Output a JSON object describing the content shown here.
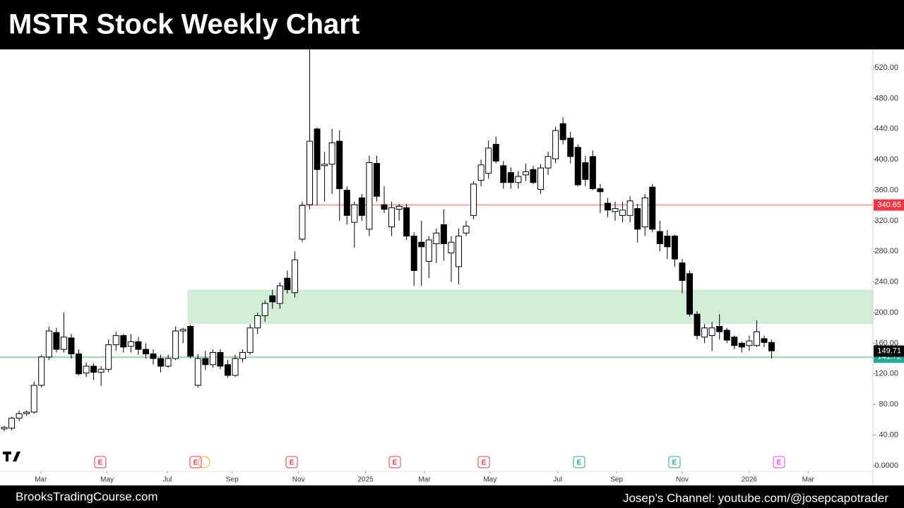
{
  "chart_data": {
    "type": "candlestick",
    "title": "MSTR Stock Weekly Chart",
    "footer_left": "BrooksTradingCourse.com",
    "footer_right": "Josep’s Channel: youtube.com/@josepcapotrader",
    "up_color": "#ffffff",
    "down_color": "#000000",
    "border_color": "#000000",
    "x": [
      0,
      1,
      2,
      3,
      4,
      5,
      6,
      7,
      8,
      9,
      10,
      11,
      12,
      13,
      14,
      15,
      16,
      17,
      18,
      19,
      20,
      21,
      22,
      23,
      24,
      25,
      26,
      27,
      28,
      29,
      30,
      31,
      32,
      33,
      34,
      35,
      36,
      37,
      38,
      39,
      40,
      41,
      42,
      43,
      44,
      45,
      46,
      47,
      48,
      49,
      50,
      51,
      52,
      53,
      54,
      55,
      56,
      57,
      58,
      59,
      60,
      61,
      62,
      63,
      64,
      65,
      66,
      67,
      68,
      69,
      70,
      71,
      72,
      73,
      74,
      75,
      76,
      77,
      78,
      79,
      80,
      81,
      82,
      83,
      84,
      85,
      86,
      87,
      88,
      89,
      90,
      91,
      92,
      93,
      94,
      95,
      96,
      97,
      98,
      99,
      100,
      101,
      102,
      103
    ],
    "open": [
      48,
      49,
      62,
      68,
      70,
      105,
      142,
      174,
      152,
      167,
      146,
      121,
      130,
      122,
      126,
      158,
      170,
      156,
      162,
      152,
      146,
      140,
      130,
      140,
      176,
      182,
      105,
      140,
      132,
      148,
      132,
      118,
      140,
      148,
      180,
      196,
      222,
      212,
      245,
      226,
      296,
      341,
      440,
      392,
      394,
      424,
      360,
      318,
      350,
      309,
      395,
      341,
      312,
      335,
      337,
      300,
      292,
      267,
      290,
      315,
      278,
      260,
      304,
      327,
      373,
      382,
      420,
      392,
      383,
      370,
      380,
      387,
      361,
      389,
      401,
      447,
      428,
      416,
      396,
      404,
      362,
      343,
      332,
      327,
      327,
      336,
      312,
      364,
      306,
      300,
      300,
      265,
      251,
      198,
      168,
      170,
      182,
      177,
      168,
      160,
      157,
      157,
      166,
      161
    ],
    "high": [
      52,
      64,
      72,
      72,
      110,
      145,
      182,
      180,
      200,
      172,
      152,
      135,
      134,
      130,
      165,
      175,
      172,
      172,
      168,
      160,
      152,
      145,
      145,
      182,
      180,
      184,
      146,
      150,
      152,
      152,
      138,
      145,
      152,
      185,
      200,
      216,
      230,
      240,
      255,
      280,
      345,
      544,
      442,
      410,
      440,
      438,
      365,
      345,
      355,
      405,
      405,
      365,
      345,
      342,
      342,
      305,
      320,
      300,
      310,
      335,
      300,
      310,
      320,
      372,
      400,
      425,
      430,
      398,
      390,
      385,
      395,
      392,
      394,
      410,
      443,
      455,
      436,
      420,
      405,
      412,
      368,
      350,
      345,
      345,
      352,
      342,
      355,
      368,
      320,
      308,
      302,
      270,
      255,
      202,
      185,
      188,
      198,
      180,
      170,
      162,
      170,
      190,
      170,
      165
    ],
    "low": [
      45,
      46,
      58,
      65,
      68,
      102,
      138,
      148,
      148,
      140,
      118,
      116,
      112,
      104,
      122,
      150,
      148,
      148,
      145,
      140,
      132,
      122,
      128,
      138,
      160,
      140,
      102,
      125,
      128,
      126,
      115,
      116,
      135,
      145,
      172,
      188,
      205,
      205,
      225,
      220,
      292,
      335,
      340,
      345,
      355,
      320,
      315,
      285,
      320,
      300,
      345,
      330,
      300,
      320,
      295,
      235,
      235,
      245,
      265,
      268,
      240,
      237,
      300,
      322,
      365,
      375,
      395,
      362,
      362,
      362,
      372,
      368,
      355,
      380,
      395,
      420,
      395,
      365,
      365,
      360,
      330,
      325,
      320,
      318,
      318,
      292,
      300,
      305,
      280,
      270,
      260,
      225,
      195,
      165,
      160,
      150,
      165,
      160,
      152,
      148,
      150,
      155,
      155,
      140
    ],
    "close": [
      50,
      62,
      68,
      70,
      105,
      142,
      176,
      152,
      168,
      146,
      120,
      130,
      122,
      126,
      158,
      170,
      155,
      162,
      152,
      146,
      140,
      130,
      140,
      176,
      178,
      143,
      140,
      132,
      148,
      130,
      118,
      140,
      148,
      180,
      196,
      212,
      214,
      235,
      230,
      269,
      340,
      424,
      387,
      394,
      422,
      362,
      327,
      341,
      327,
      396,
      352,
      335,
      337,
      339,
      300,
      255,
      286,
      295,
      304,
      290,
      292,
      300,
      313,
      368,
      393,
      415,
      398,
      370,
      370,
      378,
      384,
      370,
      389,
      404,
      438,
      426,
      404,
      367,
      374,
      362,
      358,
      334,
      336,
      334,
      346,
      309,
      350,
      309,
      290,
      286,
      270,
      242,
      198,
      170,
      180,
      180,
      175,
      164,
      157,
      155,
      163,
      175,
      161,
      150
    ],
    "xlim": [
      -0.57,
      116.6
    ],
    "xticks": [
      {
        "value": 4.9,
        "label": "Mar"
      },
      {
        "value": 13.8,
        "label": "May"
      },
      {
        "value": 21.9,
        "label": "Jul"
      },
      {
        "value": 30.6,
        "label": "Sep"
      },
      {
        "value": 39.5,
        "label": "Nov"
      },
      {
        "value": 48.5,
        "label": "2025"
      },
      {
        "value": 56.4,
        "label": "Mar"
      },
      {
        "value": 65.2,
        "label": "May"
      },
      {
        "value": 74.3,
        "label": "Jul"
      },
      {
        "value": 82.2,
        "label": "Sep"
      },
      {
        "value": 91.0,
        "label": "Nov"
      },
      {
        "value": 100.0,
        "label": "2026"
      },
      {
        "value": 107.9,
        "label": "Mar"
      }
    ],
    "ylim": [
      -7.4,
      544
    ],
    "yticks": [
      {
        "value": 0,
        "label": "0.0000"
      },
      {
        "value": 40,
        "label": "40.00"
      },
      {
        "value": 80,
        "label": "80.00"
      },
      {
        "value": 120,
        "label": "120.00"
      },
      {
        "value": 160,
        "label": "160.00"
      },
      {
        "value": 200,
        "label": "200.00"
      },
      {
        "value": 240,
        "label": "240.00"
      },
      {
        "value": 280,
        "label": "280.00"
      },
      {
        "value": 320,
        "label": "320.00"
      },
      {
        "value": 360,
        "label": "360.00"
      },
      {
        "value": 400,
        "label": "400.00"
      },
      {
        "value": 440,
        "label": "440.00"
      },
      {
        "value": 480,
        "label": "480.00"
      },
      {
        "value": 520,
        "label": "520.00"
      }
    ],
    "zone": {
      "low": 185,
      "high": 230,
      "color": "#d3ecd5"
    },
    "levels": [
      {
        "value": 340.65,
        "color": "#f4a3a3",
        "label_color": "#f23645"
      },
      {
        "value": 141.72,
        "color": "#8fd19e",
        "label_color": "#22ab94"
      }
    ],
    "last_price": 149.71
  }
}
